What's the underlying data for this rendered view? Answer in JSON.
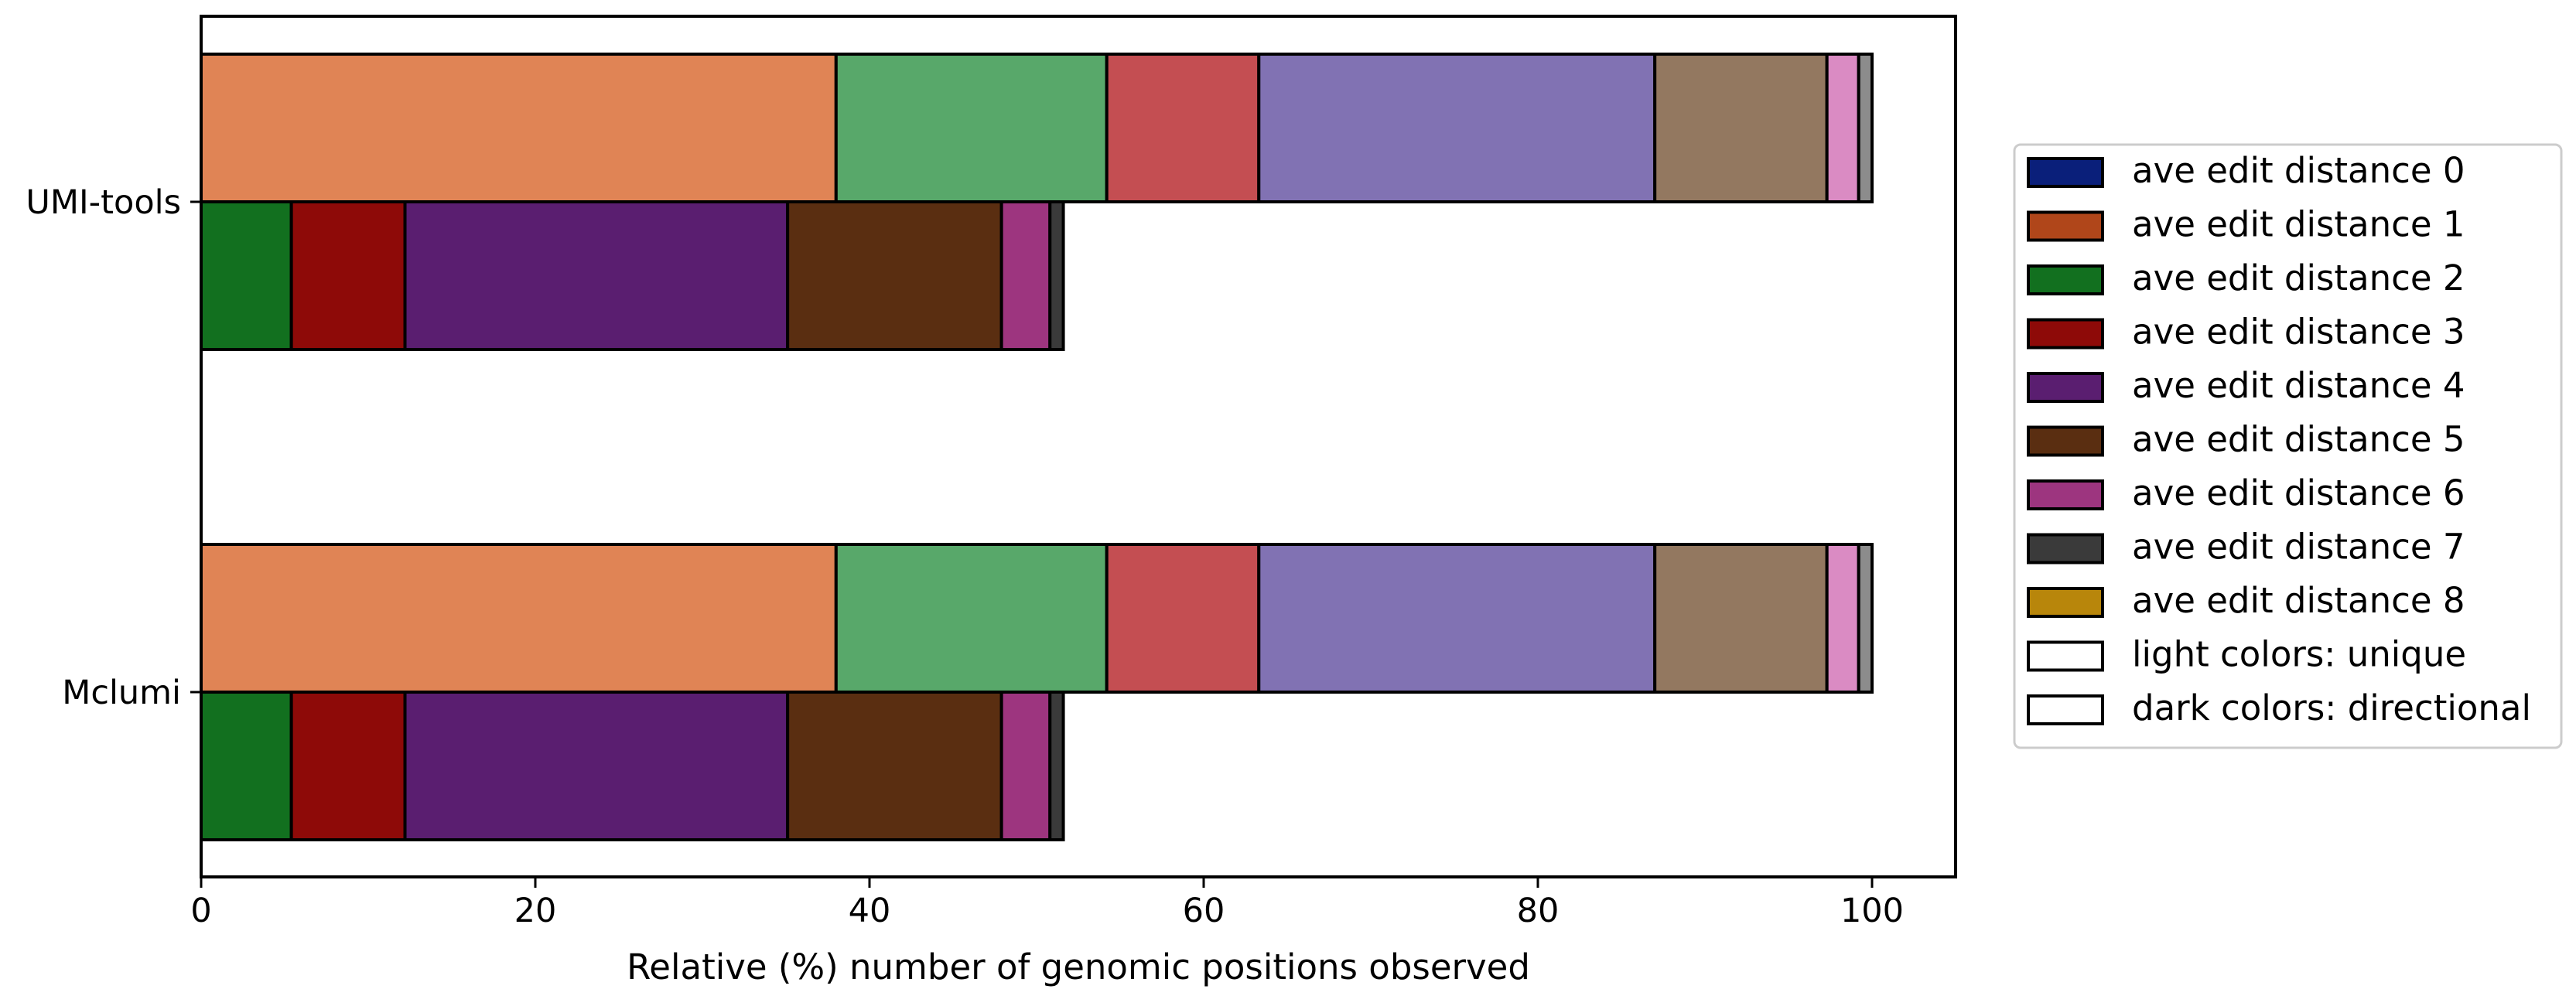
{
  "chart_data": {
    "type": "bar",
    "orientation": "horizontal",
    "stacked": true,
    "categories": [
      "UMI-tools",
      "Mclumi"
    ],
    "xlabel": "Relative (%) number of genomic positions observed",
    "ylabel": "",
    "title": "",
    "xlim": [
      0,
      105
    ],
    "xticks": [
      "0",
      "20",
      "40",
      "60",
      "80",
      "100"
    ],
    "grid": false,
    "legend_position": "right",
    "colors": {
      "ave_edit_distance_0": "#0a1f7a",
      "ave_edit_distance_1": "#b0461a",
      "ave_edit_distance_2": "#12701f",
      "ave_edit_distance_3": "#8e0a08",
      "ave_edit_distance_4": "#5a1e70",
      "ave_edit_distance_5": "#5a2e11",
      "ave_edit_distance_6": "#9d357f",
      "ave_edit_distance_7": "#3a3a3a",
      "ave_edit_distance_8": "#b8860b",
      "unique_fill": [
        "#e08455",
        "#e08455",
        "#58a86a",
        "#c44e52",
        "#8172b3",
        "#937860",
        "#da8bc3",
        "#8c8c8c",
        "#e08455"
      ],
      "directional_fill": [
        "#0a1f7a",
        "#b0461a",
        "#12701f",
        "#8e0a08",
        "#5a1e70",
        "#5a2e11",
        "#9d357f",
        "#3a3a3a",
        "#b8860b"
      ]
    },
    "stacks": [
      {
        "category": "UMI-tools",
        "method": "unique",
        "segments": [
          {
            "distance": 1,
            "value": 38.0
          },
          {
            "distance": 2,
            "value": 16.2
          },
          {
            "distance": 3,
            "value": 9.1
          },
          {
            "distance": 4,
            "value": 23.7
          },
          {
            "distance": 5,
            "value": 10.3
          },
          {
            "distance": 6,
            "value": 1.9
          },
          {
            "distance": 7,
            "value": 0.8
          }
        ]
      },
      {
        "category": "UMI-tools",
        "method": "directional",
        "segments": [
          {
            "distance": 2,
            "value": 5.4
          },
          {
            "distance": 3,
            "value": 6.8
          },
          {
            "distance": 4,
            "value": 22.9
          },
          {
            "distance": 5,
            "value": 12.8
          },
          {
            "distance": 6,
            "value": 2.9
          },
          {
            "distance": 7,
            "value": 0.8
          }
        ]
      },
      {
        "category": "Mclumi",
        "method": "unique",
        "segments": [
          {
            "distance": 1,
            "value": 38.0
          },
          {
            "distance": 2,
            "value": 16.2
          },
          {
            "distance": 3,
            "value": 9.1
          },
          {
            "distance": 4,
            "value": 23.7
          },
          {
            "distance": 5,
            "value": 10.3
          },
          {
            "distance": 6,
            "value": 1.9
          },
          {
            "distance": 7,
            "value": 0.8
          }
        ]
      },
      {
        "category": "Mclumi",
        "method": "directional",
        "segments": [
          {
            "distance": 2,
            "value": 5.4
          },
          {
            "distance": 3,
            "value": 6.8
          },
          {
            "distance": 4,
            "value": 22.9
          },
          {
            "distance": 5,
            "value": 12.8
          },
          {
            "distance": 6,
            "value": 2.9
          },
          {
            "distance": 7,
            "value": 0.8
          }
        ]
      }
    ],
    "legend": [
      {
        "label": "ave edit distance 0",
        "color": "#0a1f7a"
      },
      {
        "label": "ave edit distance 1",
        "color": "#b0461a"
      },
      {
        "label": "ave edit distance 2",
        "color": "#12701f"
      },
      {
        "label": "ave edit distance 3",
        "color": "#8e0a08"
      },
      {
        "label": "ave edit distance 4",
        "color": "#5a1e70"
      },
      {
        "label": "ave edit distance 5",
        "color": "#5a2e11"
      },
      {
        "label": "ave edit distance 6",
        "color": "#9d357f"
      },
      {
        "label": "ave edit distance 7",
        "color": "#3a3a3a"
      },
      {
        "label": "ave edit distance 8",
        "color": "#b8860b"
      },
      {
        "label": "light colors: unique",
        "color": "#ffffff"
      },
      {
        "label": "dark colors: directional",
        "color": "#ffffff"
      }
    ]
  }
}
